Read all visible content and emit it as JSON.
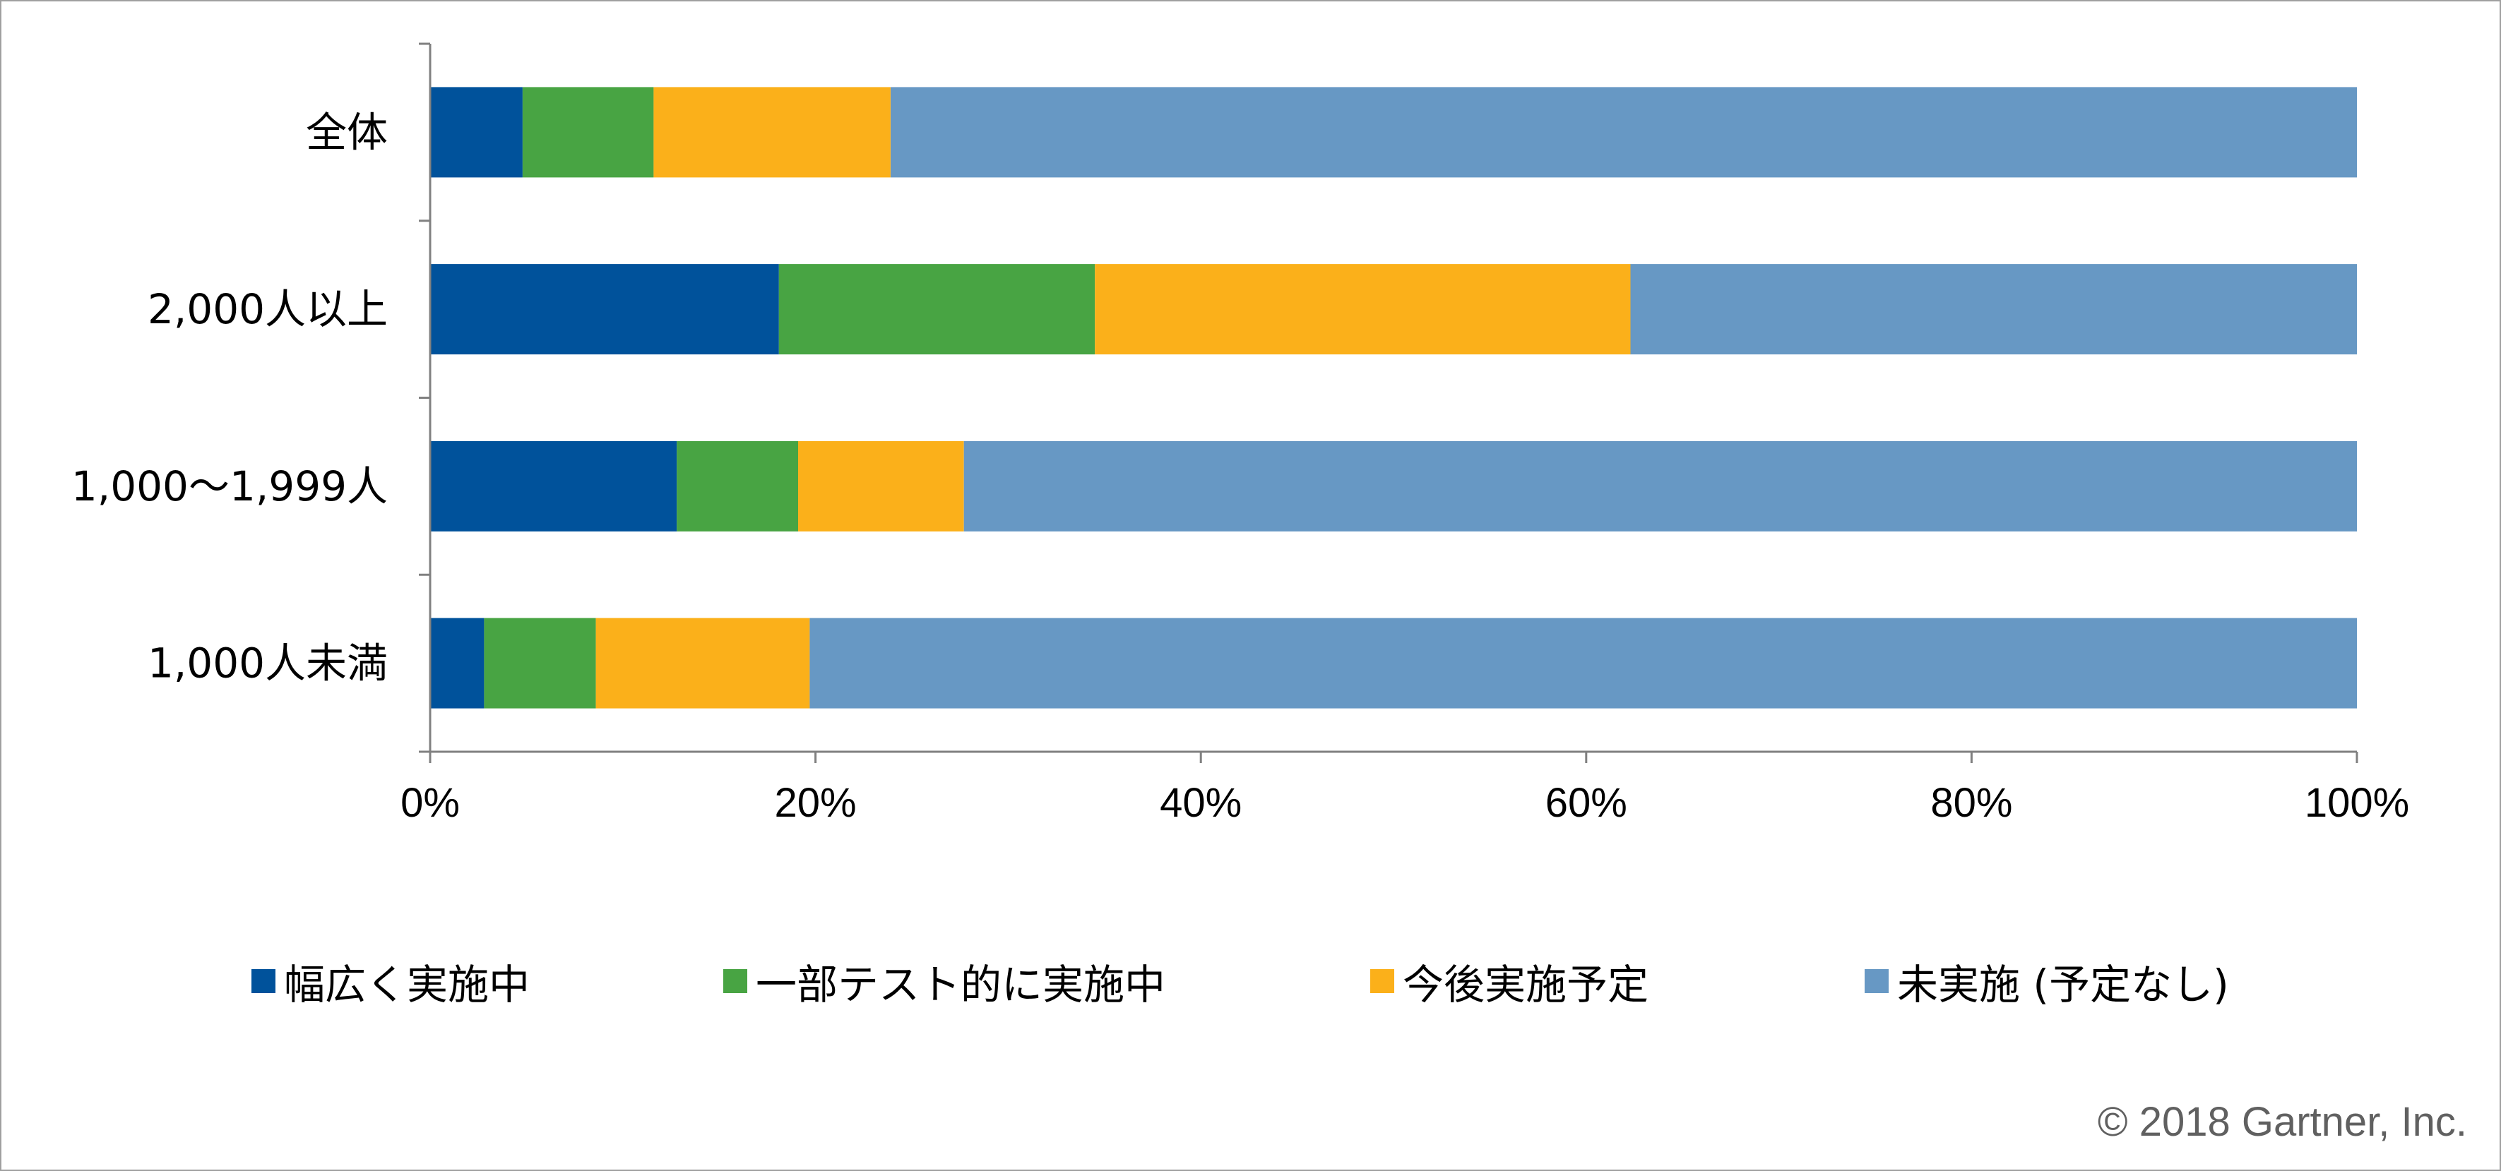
{
  "chart_data": {
    "type": "bar",
    "orientation": "horizontal",
    "stacked": "percent",
    "categories": [
      "全体",
      "2,000人以上",
      "1,000～1,999人",
      "1,000人未満"
    ],
    "series": [
      {
        "name": "幅広く実施中",
        "color": "#00529B",
        "values": [
          4.8,
          18.1,
          12.8,
          2.8
        ]
      },
      {
        "name": "一部テスト的に実施中",
        "color": "#48A443",
        "values": [
          6.8,
          16.4,
          6.3,
          5.8
        ]
      },
      {
        "name": "今後実施予定",
        "color": "#FBB01A",
        "values": [
          12.3,
          27.8,
          8.6,
          11.1
        ]
      },
      {
        "name": "未実施 (予定なし)",
        "color": "#6798C4",
        "values": [
          76.1,
          37.7,
          72.3,
          80.3
        ]
      }
    ],
    "x_ticks": [
      "0%",
      "20%",
      "40%",
      "60%",
      "80%",
      "100%"
    ],
    "xlim": [
      0,
      100
    ],
    "grid": false,
    "legend_position": "bottom"
  },
  "copyright": "© 2018 Gartner, Inc."
}
